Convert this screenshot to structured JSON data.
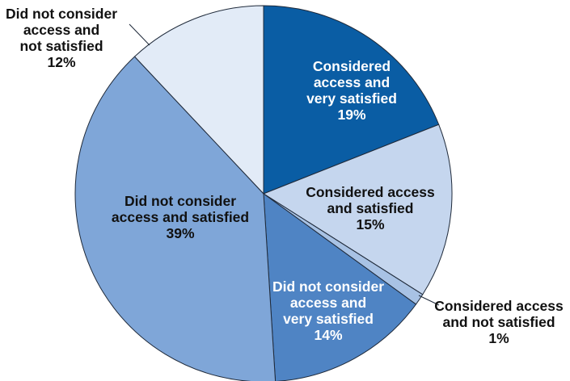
{
  "chart_data": {
    "type": "pie",
    "start_angle_deg": 0,
    "direction": "clockwise",
    "legend": "none",
    "slices": [
      {
        "lines": [
          "Considered",
          "access and",
          "very satisfied",
          "19%"
        ],
        "value": 19,
        "color": "#0a5da4",
        "text_color": "#ffffff"
      },
      {
        "lines": [
          "Considered access",
          "and satisfied",
          "15%"
        ],
        "value": 15,
        "color": "#c5d6ee",
        "text_color": "#111111"
      },
      {
        "lines": [
          "Considered access",
          "and not satisfied",
          "1%"
        ],
        "value": 1,
        "color": "#a8c2e4",
        "text_color": "#111111"
      },
      {
        "lines": [
          "Did not consider",
          "access and",
          "very satisfied",
          "14%"
        ],
        "value": 14,
        "color": "#4f84c4",
        "text_color": "#ffffff"
      },
      {
        "lines": [
          "Did not consider",
          "access and satisfied",
          "39%"
        ],
        "value": 39,
        "color": "#7fa6d8",
        "text_color": "#111111"
      },
      {
        "lines": [
          "Did not consider",
          "access and",
          "not satisfied",
          "12%"
        ],
        "value": 12,
        "color": "#e2ebf7",
        "text_color": "#111111"
      }
    ]
  }
}
